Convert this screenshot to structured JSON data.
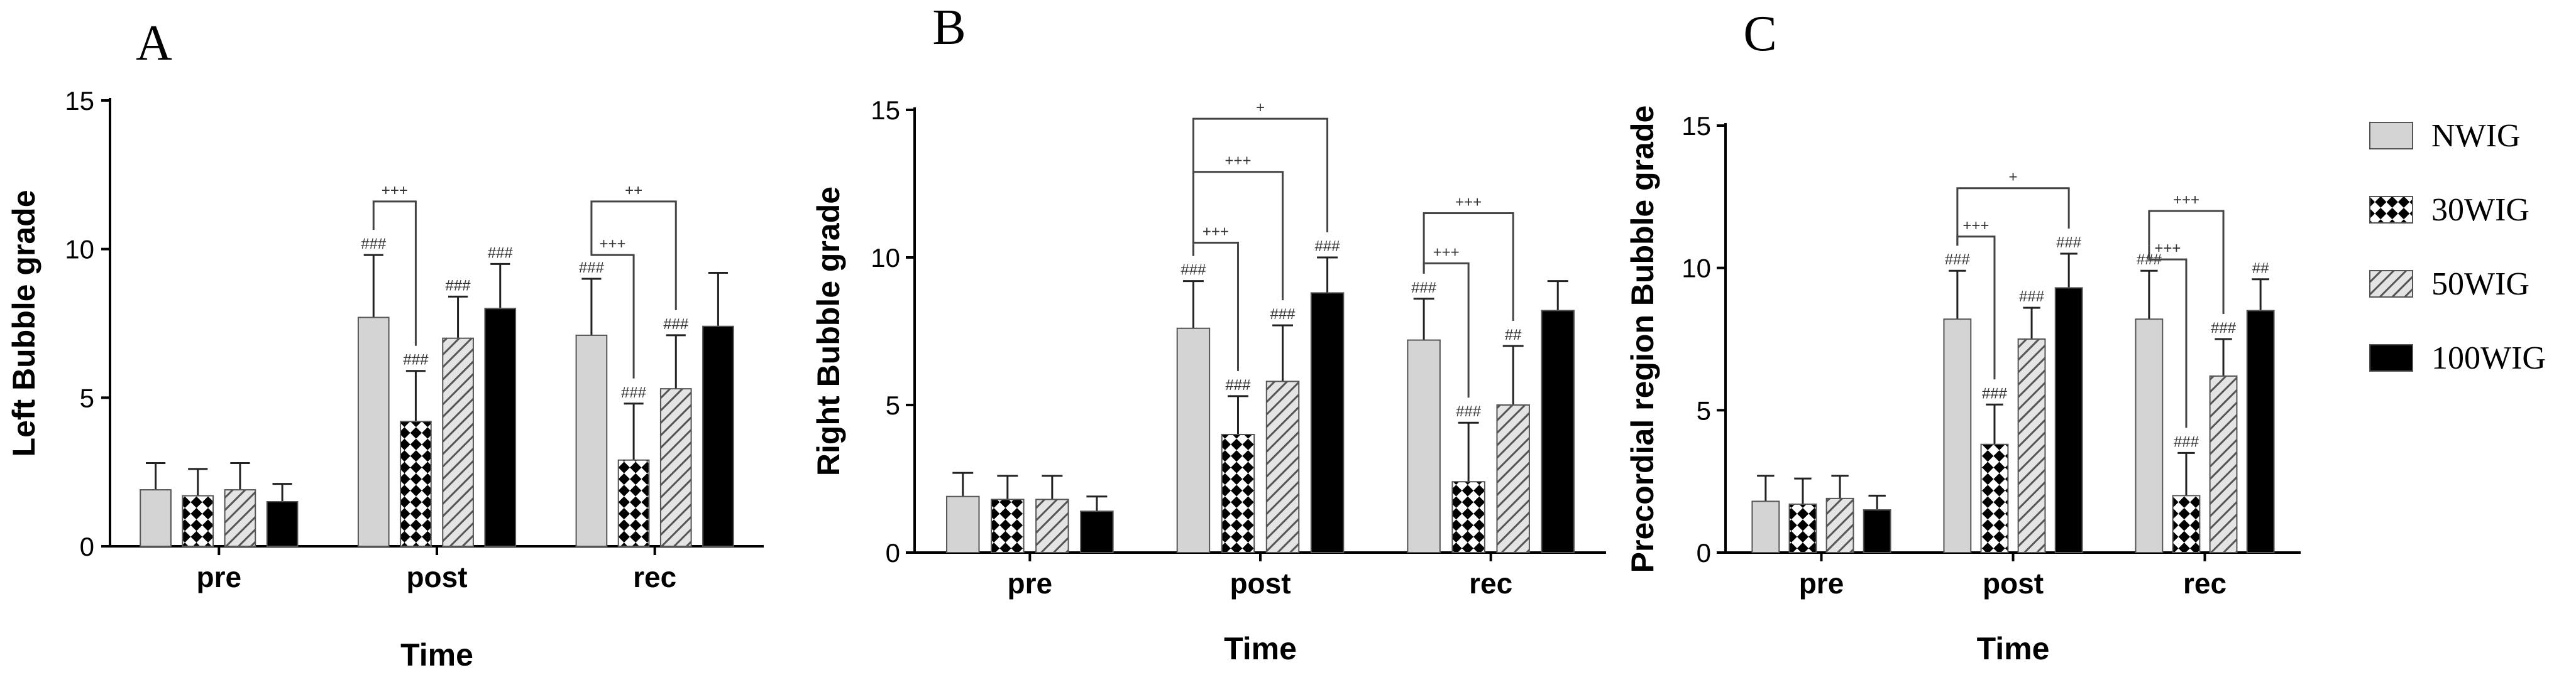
{
  "figure": {
    "legend": [
      {
        "name": "NWIG",
        "fill": "light-gray"
      },
      {
        "name": "30WIG",
        "fill": "checkered"
      },
      {
        "name": "50WIG",
        "fill": "hatched"
      },
      {
        "name": "100WIG",
        "fill": "black"
      }
    ]
  },
  "colors": {
    "light": "#d4d4d4",
    "dark": "#000000",
    "hatch": "#555555",
    "errorbar": "#222222"
  },
  "chart_data": [
    {
      "panel_letter": "A",
      "type": "bar",
      "title": "",
      "xlabel": "Time",
      "ylabel": "Left Bubble grade",
      "ylim": [
        0,
        15
      ],
      "yticks": [
        0,
        5,
        10,
        15
      ],
      "categories": [
        "pre",
        "post",
        "rec"
      ],
      "series": [
        {
          "name": "NWIG",
          "values": [
            1.9,
            7.7,
            7.1
          ],
          "errors": [
            0.9,
            2.1,
            1.9
          ],
          "labels": [
            "",
            "###",
            "###"
          ]
        },
        {
          "name": "30WIG",
          "values": [
            1.7,
            4.2,
            2.9
          ],
          "errors": [
            0.9,
            1.7,
            1.9
          ],
          "labels": [
            "",
            "###",
            "###"
          ]
        },
        {
          "name": "50WIG",
          "values": [
            1.9,
            7.0,
            5.3
          ],
          "errors": [
            0.9,
            1.4,
            1.8
          ],
          "labels": [
            "",
            "###",
            "###"
          ]
        },
        {
          "name": "100WIG",
          "values": [
            1.5,
            8.0,
            7.4
          ],
          "errors": [
            0.6,
            1.5,
            1.8
          ],
          "labels": [
            "",
            "###",
            ""
          ]
        }
      ],
      "brackets": [
        {
          "category": 1,
          "from": 0,
          "to": 1,
          "label": "+++",
          "y": 11.6
        },
        {
          "category": 2,
          "from": 0,
          "to": 1,
          "label": "+++",
          "y": 9.8
        },
        {
          "category": 2,
          "from": 0,
          "to": 2,
          "label": "++",
          "y": 11.6
        }
      ]
    },
    {
      "panel_letter": "B",
      "type": "bar",
      "title": "",
      "xlabel": "Time",
      "ylabel": "Right Bubble grade",
      "ylim": [
        0,
        15
      ],
      "yticks": [
        0,
        5,
        10,
        15
      ],
      "categories": [
        "pre",
        "post",
        "rec"
      ],
      "series": [
        {
          "name": "NWIG",
          "values": [
            1.9,
            7.6,
            7.2
          ],
          "errors": [
            0.8,
            1.6,
            1.4
          ],
          "labels": [
            "",
            "###",
            "###"
          ]
        },
        {
          "name": "30WIG",
          "values": [
            1.8,
            4.0,
            2.4
          ],
          "errors": [
            0.8,
            1.3,
            2.0
          ],
          "labels": [
            "",
            "###",
            "###"
          ]
        },
        {
          "name": "50WIG",
          "values": [
            1.8,
            5.8,
            5.0
          ],
          "errors": [
            0.8,
            1.9,
            2.0
          ],
          "labels": [
            "",
            "###",
            "##"
          ]
        },
        {
          "name": "100WIG",
          "values": [
            1.4,
            8.8,
            8.2
          ],
          "errors": [
            0.5,
            1.2,
            1.0
          ],
          "labels": [
            "",
            "###",
            ""
          ]
        }
      ],
      "brackets": [
        {
          "category": 1,
          "from": 0,
          "to": 1,
          "label": "+++",
          "y": 10.5
        },
        {
          "category": 1,
          "from": 0,
          "to": 2,
          "label": "+++",
          "y": 12.9
        },
        {
          "category": 1,
          "from": 0,
          "to": 3,
          "label": "+",
          "y": 14.7
        },
        {
          "category": 2,
          "from": 0,
          "to": 1,
          "label": "+++",
          "y": 9.8
        },
        {
          "category": 2,
          "from": 0,
          "to": 2,
          "label": "+++",
          "y": 11.5
        }
      ]
    },
    {
      "panel_letter": "C",
      "type": "bar",
      "title": "",
      "xlabel": "Time",
      "ylabel": "Precordial region Bubble grade",
      "ylim": [
        0,
        15
      ],
      "yticks": [
        0,
        5,
        10,
        15
      ],
      "categories": [
        "pre",
        "post",
        "rec"
      ],
      "series": [
        {
          "name": "NWIG",
          "values": [
            1.8,
            8.2,
            8.2
          ],
          "errors": [
            0.9,
            1.7,
            1.7
          ],
          "labels": [
            "",
            "###",
            "###"
          ]
        },
        {
          "name": "30WIG",
          "values": [
            1.7,
            3.8,
            2.0
          ],
          "errors": [
            0.9,
            1.4,
            1.5
          ],
          "labels": [
            "",
            "###",
            "###"
          ]
        },
        {
          "name": "50WIG",
          "values": [
            1.9,
            7.5,
            6.2
          ],
          "errors": [
            0.8,
            1.1,
            1.3
          ],
          "labels": [
            "",
            "###",
            "###"
          ]
        },
        {
          "name": "100WIG",
          "values": [
            1.5,
            9.3,
            8.5
          ],
          "errors": [
            0.5,
            1.2,
            1.1
          ],
          "labels": [
            "",
            "###",
            "##"
          ]
        }
      ],
      "brackets": [
        {
          "category": 1,
          "from": 0,
          "to": 1,
          "label": "+++",
          "y": 11.1
        },
        {
          "category": 1,
          "from": 0,
          "to": 3,
          "label": "+",
          "y": 12.8
        },
        {
          "category": 2,
          "from": 0,
          "to": 1,
          "label": "+++",
          "y": 10.3
        },
        {
          "category": 2,
          "from": 0,
          "to": 2,
          "label": "+++",
          "y": 12.0
        }
      ]
    }
  ]
}
